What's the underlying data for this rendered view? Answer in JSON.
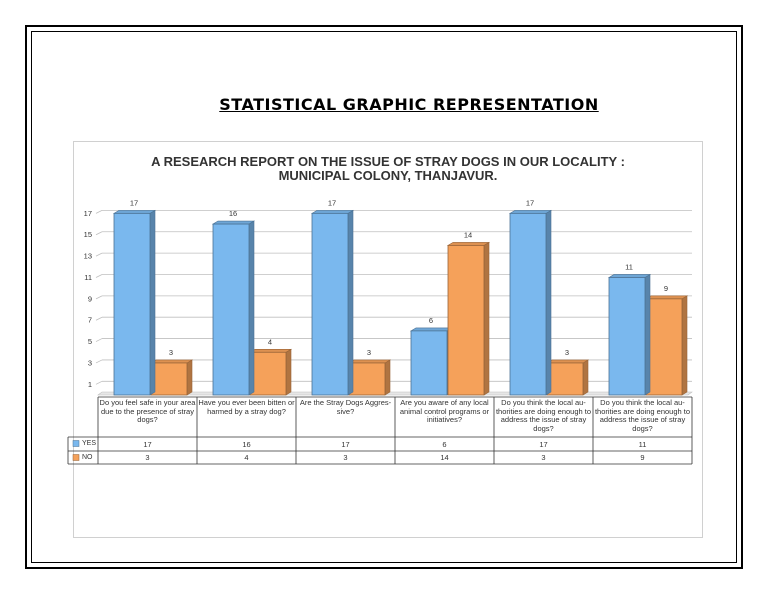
{
  "page": {
    "heading": "STATISTICAL GRAPHIC REPRESENTATION"
  },
  "colors": {
    "yes": "#7ab8ee",
    "no": "#f5a15a"
  },
  "chart_data": {
    "type": "bar",
    "title_lines": [
      "A RESEARCH REPORT ON THE ISSUE OF STRAY DOGS IN OUR LOCALITY :",
      "MUNICIPAL COLONY, THANJAVUR."
    ],
    "categories": [
      "Do you feel safe in your area due to the presence of stray dogs?",
      "Have you ever been bitten or harmed by a stray dog?",
      "Are the Stray Dogs Aggres- sive?",
      "Are you aware of any local animal control programs or initiatives?",
      "Do you think the local au- thorities are doing enough to address the issue of stray dogs?",
      "Do you think the local au- thorities are doing enough to address the issue of stray dogs?"
    ],
    "series": [
      {
        "name": "YES",
        "values": [
          17,
          16,
          17,
          6,
          17,
          11
        ]
      },
      {
        "name": "NO",
        "values": [
          3,
          4,
          3,
          14,
          3,
          9
        ]
      }
    ],
    "y_ticks": [
      "1",
      "3",
      "5",
      "7",
      "9",
      "11",
      "13",
      "15",
      "17"
    ],
    "ylim": [
      0,
      19
    ],
    "grid": true,
    "legend_placement": "data-table"
  }
}
